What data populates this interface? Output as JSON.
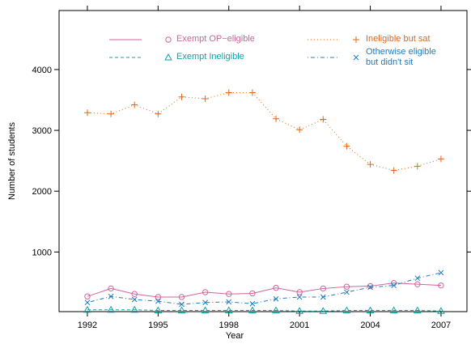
{
  "chart_data": {
    "type": "line",
    "x_label": "Year",
    "y_label": "Number of students",
    "x": [
      1992,
      1993,
      1994,
      1995,
      1996,
      1997,
      1998,
      1999,
      2000,
      2001,
      2002,
      2003,
      2004,
      2005,
      2006,
      2007
    ],
    "xlim": [
      1990.8,
      2008.1
    ],
    "xticks": [
      1992,
      1995,
      1998,
      2001,
      2004,
      2007
    ],
    "ylim": [
      20,
      4970
    ],
    "yticks": [
      1000,
      2000,
      3000,
      4000
    ],
    "series": [
      {
        "name": "Exempt OP−eligible",
        "color": "#d0639a",
        "linestyle": "solid",
        "marker": "circle",
        "values": [
          270,
          400,
          310,
          260,
          260,
          340,
          310,
          320,
          410,
          340,
          400,
          430,
          440,
          490,
          470,
          450
        ]
      },
      {
        "name": "Ineligible but sat",
        "color": "#e0681a",
        "linestyle": "dotted",
        "marker": "plus",
        "values": [
          3290,
          3270,
          3420,
          3270,
          3550,
          3520,
          3620,
          3620,
          3190,
          3010,
          3180,
          2740,
          2440,
          2340,
          2410,
          2530
        ]
      },
      {
        "name": "Exempt Ineligible",
        "color": "#12a3a3",
        "linestyle": "dashed",
        "marker": "triangle",
        "values": [
          50,
          50,
          50,
          40,
          40,
          40,
          40,
          40,
          40,
          30,
          30,
          40,
          40,
          40,
          40,
          30
        ]
      },
      {
        "name": "Otherwise eligible but didn't sit",
        "color": "#1f7cc0",
        "linestyle": "dotdash",
        "marker": "x",
        "values": [
          170,
          270,
          220,
          190,
          140,
          170,
          180,
          150,
          230,
          260,
          260,
          340,
          420,
          450,
          570,
          660
        ]
      }
    ]
  }
}
